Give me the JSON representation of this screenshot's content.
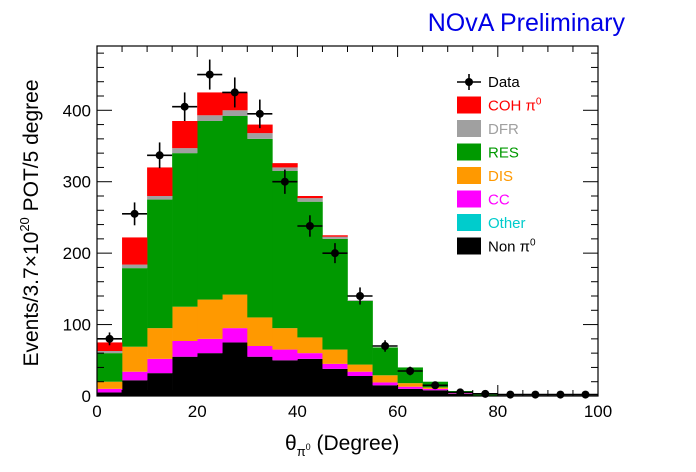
{
  "chart_data": {
    "type": "bar",
    "stacked": true,
    "watermark": "NOvA Preliminary",
    "watermark_color": "#0000e6",
    "xlabel_main": "θ",
    "xlabel_sub": "π",
    "xlabel_sup": "0",
    "xlabel_rest": " (Degree)",
    "ylabel_pre": "Events/3.7×10",
    "ylabel_sup": "20",
    "ylabel_post": " POT/5 degree",
    "xlim": [
      0,
      100
    ],
    "ylim": [
      0,
      490
    ],
    "xticks": [
      0,
      20,
      40,
      60,
      80,
      100
    ],
    "yticks": [
      0,
      100,
      200,
      300,
      400
    ],
    "bin_edges": [
      0,
      5,
      10,
      15,
      20,
      25,
      30,
      35,
      40,
      45,
      50,
      55,
      60,
      65,
      70,
      75,
      80,
      85,
      90,
      95,
      100
    ],
    "series": [
      {
        "name": "Non π⁰",
        "label_main": "Non π",
        "label_sup": "0",
        "color": "#000000",
        "text_color": "#000000",
        "values": [
          5,
          22,
          32,
          55,
          60,
          75,
          55,
          50,
          52,
          38,
          28,
          15,
          10,
          8,
          3,
          0,
          0,
          0,
          0,
          0
        ]
      },
      {
        "name": "Other",
        "label_main": "Other",
        "label_sup": "",
        "color": "#00cccc",
        "text_color": "#00cccc",
        "values": [
          0,
          0,
          0,
          0,
          0,
          0,
          0,
          0,
          0,
          0,
          0,
          0,
          0,
          0,
          0,
          0,
          0,
          0,
          0,
          0
        ]
      },
      {
        "name": "CC",
        "label_main": "CC",
        "label_sup": "",
        "color": "#ff00ff",
        "text_color": "#ff00ff",
        "values": [
          5,
          12,
          20,
          22,
          20,
          20,
          15,
          15,
          8,
          7,
          6,
          4,
          3,
          2,
          1,
          0,
          0,
          0,
          0,
          0
        ]
      },
      {
        "name": "DIS",
        "label_main": "DIS",
        "label_sup": "",
        "color": "#ff9900",
        "text_color": "#ff9900",
        "values": [
          10,
          35,
          43,
          48,
          55,
          47,
          40,
          30,
          22,
          20,
          10,
          10,
          5,
          2,
          1,
          0,
          0,
          0,
          0,
          0
        ]
      },
      {
        "name": "RES",
        "label_main": "RES",
        "label_sup": "",
        "color": "#009900",
        "text_color": "#009900",
        "values": [
          40,
          110,
          180,
          215,
          250,
          250,
          250,
          220,
          190,
          155,
          89,
          39,
          22,
          8,
          2,
          2,
          0,
          0,
          0,
          0
        ]
      },
      {
        "name": "DFR",
        "label_main": "DFR",
        "label_sup": "",
        "color": "#a0a0a0",
        "text_color": "#a0a0a0",
        "values": [
          3,
          5,
          5,
          7,
          8,
          8,
          8,
          5,
          5,
          3,
          1,
          0,
          0,
          0,
          0,
          0,
          0,
          0,
          0,
          0
        ]
      },
      {
        "name": "COH π⁰",
        "label_main": "COH π",
        "label_sup": "0",
        "color": "#ff0000",
        "text_color": "#ff0000",
        "values": [
          12,
          38,
          40,
          38,
          32,
          25,
          12,
          6,
          3,
          2,
          0,
          0,
          0,
          0,
          0,
          0,
          0,
          0,
          0,
          0
        ]
      }
    ],
    "data_points": {
      "name": "Data",
      "x": [
        2.5,
        7.5,
        12.5,
        17.5,
        22.5,
        27.5,
        32.5,
        37.5,
        42.5,
        47.5,
        52.5,
        57.5,
        62.5,
        67.5,
        72.5,
        77.5,
        82.5,
        87.5,
        92.5,
        97.5
      ],
      "y": [
        80,
        255,
        337,
        405,
        450,
        425,
        395,
        300,
        238,
        200,
        140,
        70,
        35,
        15,
        5,
        3,
        2,
        2,
        2,
        2
      ],
      "yerr": [
        9,
        16,
        18,
        20,
        21,
        21,
        20,
        17,
        15,
        14,
        12,
        8,
        6,
        4,
        2,
        2,
        1,
        1,
        1,
        1
      ]
    },
    "legend_position": "top-right"
  }
}
